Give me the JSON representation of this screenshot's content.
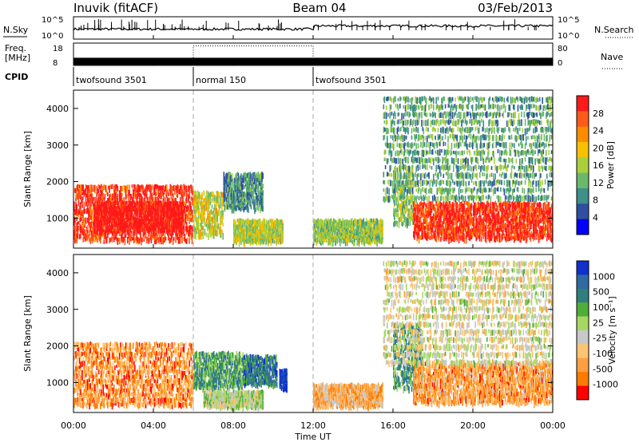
{
  "header": {
    "station": "Inuvik (fitACF)",
    "beam": "Beam 04",
    "date": "03/Feb/2013"
  },
  "noise_panel": {
    "left_label": "N.Sky",
    "right_label": "N.Search",
    "left_ticks": [
      "10^5",
      "10^0"
    ],
    "right_ticks": [
      "10^5",
      "10^0"
    ]
  },
  "freq_panel": {
    "left_label_line1": "Freq.",
    "left_label_line2": "[MHz]",
    "right_label": "Nave",
    "left_ticks": [
      "18",
      "8"
    ],
    "right_ticks": [
      "80",
      "0"
    ],
    "freq_level_mhz": 10.0,
    "nave_level_normal": 70
  },
  "cpid": {
    "label": "CPID",
    "segments": [
      {
        "name": "twofsound 3501",
        "start_h": 0,
        "end_h": 6
      },
      {
        "name": "normal 150",
        "start_h": 6,
        "end_h": 12
      },
      {
        "name": "twofsound 3501",
        "start_h": 12,
        "end_h": 24
      }
    ]
  },
  "xaxis": {
    "title": "Time UT",
    "ticks": [
      "00:00",
      "04:00",
      "08:00",
      "12:00",
      "16:00",
      "20:00",
      "00:00"
    ],
    "tick_hours": [
      0,
      4,
      8,
      12,
      16,
      20,
      24
    ]
  },
  "colors": {
    "power_bar": [
      "#0000ff",
      "#2f4fa0",
      "#3f8f8a",
      "#6ab86a",
      "#a9d03a",
      "#f6c100",
      "#ff8c00",
      "#ff5a1a",
      "#ff1a1a"
    ],
    "velocity_bar": [
      "#ff0000",
      "#ff7a00",
      "#ffa040",
      "#ffc470",
      "#c8c8c8",
      "#a6d860",
      "#4fae3a",
      "#2f7f7f",
      "#2f6aa0",
      "#1030d0"
    ]
  },
  "chart_data": [
    {
      "type": "heatmap",
      "title": "",
      "xlabel": "",
      "ylabel": "Slant Range [km]",
      "xlim": [
        0,
        24
      ],
      "ylim": [
        180,
        4500
      ],
      "yticks": [
        "1000",
        "2000",
        "3000",
        "4000"
      ],
      "colorbar": {
        "label": "Power [dB]",
        "ticks": [
          "28",
          "24",
          "20",
          "16",
          "12",
          "8",
          "4"
        ]
      },
      "blobs": [
        {
          "t0": 0.0,
          "t1": 6.0,
          "r0": 350,
          "r1": 1900,
          "level": 0.9
        },
        {
          "t0": 1.0,
          "t1": 5.5,
          "r0": 600,
          "r1": 1400,
          "level": 1.0
        },
        {
          "t0": 6.0,
          "t1": 7.5,
          "r0": 500,
          "r1": 1700,
          "level": 0.55
        },
        {
          "t0": 7.5,
          "t1": 9.5,
          "r0": 1200,
          "r1": 2200,
          "level": 0.3
        },
        {
          "t0": 8.0,
          "t1": 10.5,
          "r0": 300,
          "r1": 900,
          "level": 0.5
        },
        {
          "t0": 12.0,
          "t1": 15.5,
          "r0": 300,
          "r1": 900,
          "level": 0.45
        },
        {
          "t0": 16.0,
          "t1": 17.0,
          "r0": 800,
          "r1": 2400,
          "level": 0.45
        },
        {
          "t0": 17.0,
          "t1": 24.0,
          "r0": 400,
          "r1": 1400,
          "level": 0.92
        },
        {
          "t0": 15.5,
          "t1": 24.0,
          "r0": 1500,
          "r1": 4400,
          "level": 0.35
        }
      ]
    },
    {
      "type": "heatmap",
      "title": "",
      "xlabel": "Time UT",
      "ylabel": "Slant Range [km]",
      "xlim": [
        0,
        24
      ],
      "ylim": [
        180,
        4500
      ],
      "yticks": [
        "1000",
        "2000",
        "3000",
        "4000"
      ],
      "colorbar": {
        "label": "Velocity [m s⁻¹]",
        "ticks": [
          "1000",
          "500",
          "100",
          "25",
          "-25",
          "-100",
          "-500",
          "-1000"
        ]
      },
      "blobs": [
        {
          "t0": 0.0,
          "t1": 6.0,
          "r0": 350,
          "r1": 2100,
          "level": 0.22
        },
        {
          "t0": 6.0,
          "t1": 8.5,
          "r0": 800,
          "r1": 1800,
          "level": 0.7
        },
        {
          "t0": 8.5,
          "t1": 10.2,
          "r0": 900,
          "r1": 1700,
          "level": 0.78
        },
        {
          "t0": 10.3,
          "t1": 10.7,
          "r0": 800,
          "r1": 1300,
          "level": 0.98
        },
        {
          "t0": 6.5,
          "t1": 9.5,
          "r0": 300,
          "r1": 700,
          "level": 0.5
        },
        {
          "t0": 12.0,
          "t1": 15.5,
          "r0": 300,
          "r1": 900,
          "level": 0.3
        },
        {
          "t0": 16.0,
          "t1": 17.5,
          "r0": 800,
          "r1": 2600,
          "level": 0.7
        },
        {
          "t0": 17.0,
          "t1": 24.0,
          "r0": 400,
          "r1": 1500,
          "level": 0.25
        },
        {
          "t0": 15.5,
          "t1": 24.0,
          "r0": 1500,
          "r1": 4400,
          "level": 0.45
        }
      ]
    }
  ]
}
